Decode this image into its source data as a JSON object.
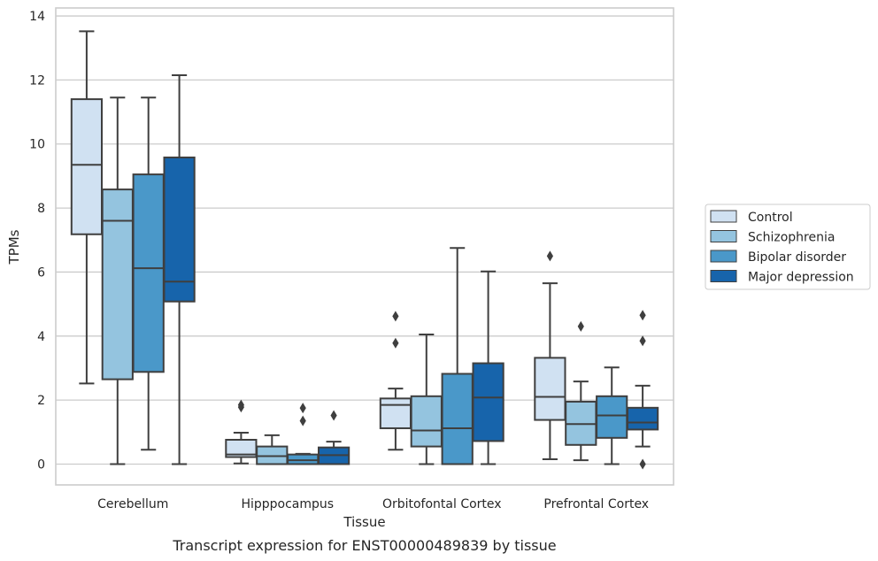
{
  "chart_data": {
    "type": "box",
    "title": "",
    "caption": "Transcript expression for ENST00000489839 by tissue",
    "xlabel": "Tissue",
    "ylabel": "TPMs",
    "ylim": [
      -0.65,
      14.25
    ],
    "yticks": [
      0,
      2,
      4,
      6,
      8,
      10,
      12,
      14
    ],
    "grid": "horizontal",
    "legend_position": "right",
    "categories": [
      "Cerebellum",
      "Hipppocampus",
      "Orbitofontal Cortex",
      "Prefrontal Cortex"
    ],
    "series": [
      {
        "name": "Control",
        "color": "#d0e1f2",
        "boxes": [
          {
            "whislo": 2.52,
            "q1": 7.18,
            "med": 9.35,
            "q3": 11.4,
            "whishi": 13.52,
            "fliers": []
          },
          {
            "whislo": 0.02,
            "q1": 0.22,
            "med": 0.3,
            "q3": 0.76,
            "whishi": 0.98,
            "fliers": [
              1.78,
              1.85
            ]
          },
          {
            "whislo": 0.45,
            "q1": 1.12,
            "med": 1.85,
            "q3": 2.05,
            "whishi": 2.36,
            "fliers": [
              3.78,
              4.62
            ]
          },
          {
            "whislo": 0.15,
            "q1": 1.38,
            "med": 2.1,
            "q3": 3.32,
            "whishi": 5.65,
            "fliers": [
              6.5
            ]
          }
        ]
      },
      {
        "name": "Schizophrenia",
        "color": "#94c4df",
        "boxes": [
          {
            "whislo": 0.0,
            "q1": 2.65,
            "med": 7.6,
            "q3": 8.58,
            "whishi": 11.45,
            "fliers": []
          },
          {
            "whislo": 0.0,
            "q1": 0.0,
            "med": 0.25,
            "q3": 0.55,
            "whishi": 0.9,
            "fliers": []
          },
          {
            "whislo": 0.0,
            "q1": 0.55,
            "med": 1.05,
            "q3": 2.12,
            "whishi": 4.05,
            "fliers": []
          },
          {
            "whislo": 0.12,
            "q1": 0.6,
            "med": 1.25,
            "q3": 1.95,
            "whishi": 2.58,
            "fliers": [
              4.3
            ]
          }
        ]
      },
      {
        "name": "Bipolar disorder",
        "color": "#4a98c9",
        "boxes": [
          {
            "whislo": 0.45,
            "q1": 2.88,
            "med": 6.12,
            "q3": 9.05,
            "whishi": 11.45,
            "fliers": []
          },
          {
            "whislo": 0.0,
            "q1": 0.0,
            "med": 0.12,
            "q3": 0.3,
            "whishi": 0.32,
            "fliers": [
              1.35,
              1.75
            ]
          },
          {
            "whislo": 0.0,
            "q1": 0.0,
            "med": 1.12,
            "q3": 2.82,
            "whishi": 6.75,
            "fliers": []
          },
          {
            "whislo": 0.0,
            "q1": 0.82,
            "med": 1.52,
            "q3": 2.12,
            "whishi": 3.02,
            "fliers": []
          }
        ]
      },
      {
        "name": "Major depression",
        "color": "#1764ab",
        "boxes": [
          {
            "whislo": 0.0,
            "q1": 5.08,
            "med": 5.7,
            "q3": 9.58,
            "whishi": 12.15,
            "fliers": []
          },
          {
            "whislo": 0.0,
            "q1": 0.0,
            "med": 0.28,
            "q3": 0.52,
            "whishi": 0.7,
            "fliers": [
              1.52
            ]
          },
          {
            "whislo": 0.0,
            "q1": 0.72,
            "med": 2.08,
            "q3": 3.15,
            "whishi": 6.02,
            "fliers": []
          },
          {
            "whislo": 0.55,
            "q1": 1.08,
            "med": 1.3,
            "q3": 1.76,
            "whishi": 2.45,
            "fliers": [
              0.0,
              3.85,
              4.65
            ]
          }
        ]
      }
    ]
  }
}
